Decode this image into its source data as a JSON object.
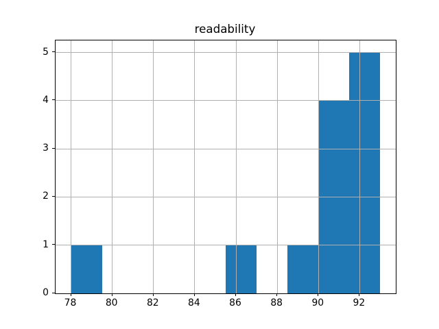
{
  "chart_data": {
    "type": "bar",
    "subtype": "histogram",
    "title": "readability",
    "bin_edges": [
      78,
      79.5,
      81,
      82.5,
      84,
      85.5,
      87,
      88.5,
      90,
      91.5,
      93
    ],
    "counts": [
      1,
      0,
      0,
      0,
      0,
      1,
      0,
      1,
      4,
      5
    ],
    "xticks": [
      78,
      80,
      82,
      84,
      86,
      88,
      90,
      92
    ],
    "yticks": [
      0,
      1,
      2,
      3,
      4,
      5
    ],
    "xlim": [
      77.25,
      93.75
    ],
    "ylim": [
      0,
      5.25
    ],
    "xlabel": "",
    "ylabel": "",
    "grid": true,
    "grid_over_bars": true,
    "bar_color": "#1f77b4",
    "grid_color": "#b0b0b0",
    "spine_color": "#000000",
    "text_color": "#000000",
    "background": "#ffffff"
  }
}
